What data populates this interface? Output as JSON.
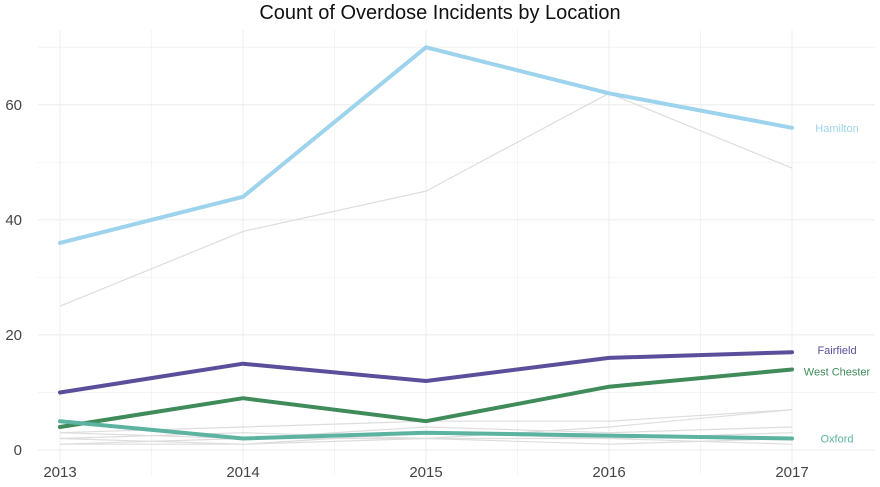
{
  "chart_data": {
    "type": "line",
    "title": "Count of Overdose Incidents by Location",
    "xlabel": "",
    "ylabel": "",
    "x": [
      2013,
      2014,
      2015,
      2016,
      2017
    ],
    "x_tick_labels": [
      "2013",
      "2014",
      "2015",
      "2016",
      "2017"
    ],
    "ylim": [
      0,
      73
    ],
    "y_ticks": [
      0,
      20,
      40,
      60
    ],
    "y_tick_labels": [
      "0",
      "20",
      "40",
      "60"
    ],
    "grid": true,
    "legend": "direct labels at line ends",
    "highlighted_series": [
      {
        "name": "Hamilton",
        "color": "#9dd3ec",
        "values": [
          36,
          44,
          70,
          62,
          56
        ]
      },
      {
        "name": "Fairfield",
        "color": "#5b4e9a",
        "values": [
          10,
          15,
          12,
          16,
          17
        ]
      },
      {
        "name": "West Chester",
        "color": "#3f8b5a",
        "values": [
          4,
          9,
          5,
          11,
          14
        ]
      },
      {
        "name": "Oxford",
        "color": "#5bb3a0",
        "values": [
          5,
          2,
          3,
          2.5,
          2
        ]
      }
    ],
    "background_series": [
      {
        "color": "#dddddd",
        "values": [
          25,
          38,
          45,
          62,
          49
        ]
      },
      {
        "color": "#dddddd",
        "values": [
          3,
          4,
          5,
          5,
          7
        ]
      },
      {
        "color": "#dddddd",
        "values": [
          2,
          3,
          2,
          4,
          7
        ]
      },
      {
        "color": "#dddddd",
        "values": [
          1,
          2,
          4,
          3,
          4
        ]
      },
      {
        "color": "#dddddd",
        "values": [
          3,
          2,
          2,
          2,
          3
        ]
      },
      {
        "color": "#dddddd",
        "values": [
          2,
          1,
          2,
          1,
          2
        ]
      },
      {
        "color": "#dddddd",
        "values": [
          1,
          1,
          3,
          2,
          1
        ]
      }
    ]
  }
}
